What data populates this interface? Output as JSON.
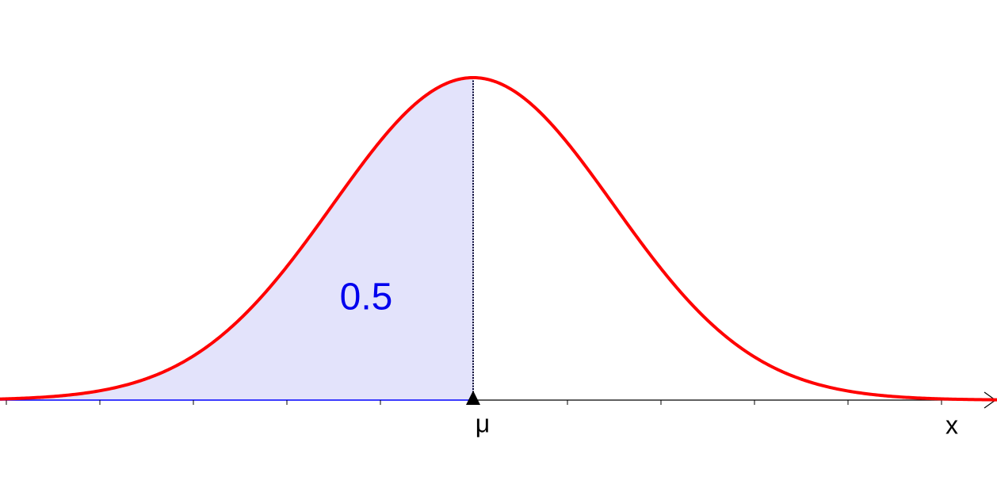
{
  "labels": {
    "area": "0.5",
    "mean": "μ",
    "axis": "x"
  }
}
